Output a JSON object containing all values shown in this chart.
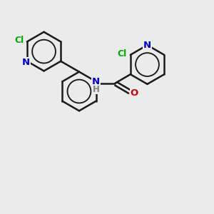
{
  "background_color": "#ebebeb",
  "bond_color": "#1a1a1a",
  "N_color": "#0000cc",
  "O_color": "#cc0000",
  "Cl_color": "#00aa00",
  "H_color": "#808080",
  "figsize": [
    3.0,
    3.0
  ],
  "dpi": 100,
  "xlim": [
    0,
    10
  ],
  "ylim": [
    0,
    10
  ]
}
